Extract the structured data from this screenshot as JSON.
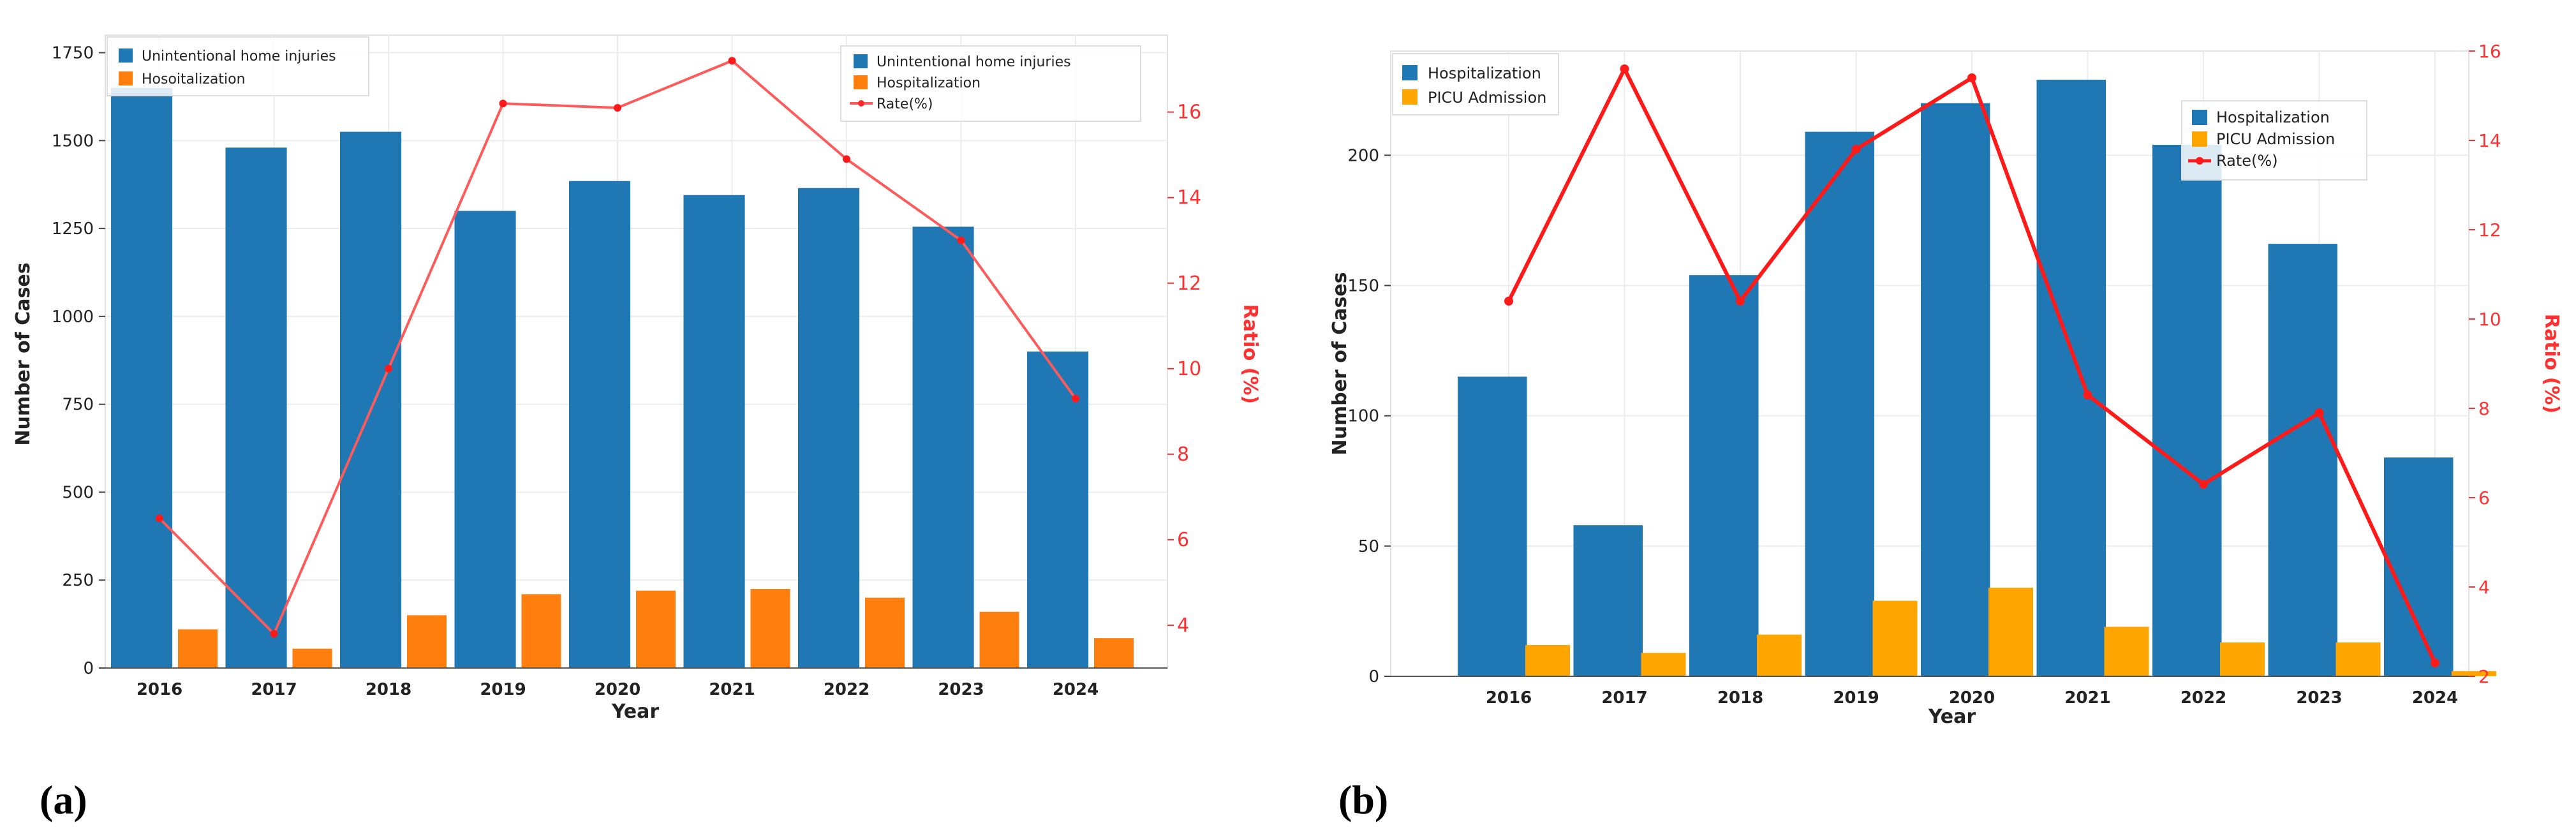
{
  "colors": {
    "blue": "#1f77b4",
    "orange": "#ff7f0e",
    "gold": "#ffa500",
    "rate_a": "#ff5a5a",
    "rate_b": "#ff1a1a",
    "axis_right": "#ff3030"
  },
  "panels": [
    {
      "label": "(a)",
      "xlabel": "Year",
      "ylabel": "Number of Cases",
      "y2label": "Ratio (%)",
      "legend_inner": [
        "Unintentional home injuries",
        "Hosoitalization"
      ],
      "legend_outer": [
        "Unintentional home injuries",
        "Hospitalization",
        "Rate(%)"
      ]
    },
    {
      "label": "(b)",
      "xlabel": "Year",
      "ylabel": "Number of Cases",
      "y2label": "Ratio (%)",
      "legend_inner": [
        "Hospitalization",
        "PICU Admission"
      ],
      "legend_outer": [
        "Hospitalization",
        "PICU Admission",
        "Rate(%)"
      ]
    }
  ],
  "chart_data": [
    {
      "type": "bar",
      "categories": [
        "2016",
        "2017",
        "2018",
        "2019",
        "2020",
        "2021",
        "2022",
        "2023",
        "2024"
      ],
      "series": [
        {
          "name": "Unintentional home injuries",
          "values": [
            1650,
            1480,
            1525,
            1300,
            1385,
            1345,
            1365,
            1255,
            900
          ]
        },
        {
          "name": "Hospitalization",
          "values": [
            110,
            55,
            150,
            210,
            220,
            225,
            200,
            160,
            85
          ]
        }
      ],
      "line_series": {
        "name": "Rate(%)",
        "axis": "right",
        "values": [
          6.5,
          3.8,
          10.0,
          16.2,
          16.1,
          17.2,
          14.9,
          13.0,
          9.3
        ]
      },
      "title": "",
      "xlabel": "Year",
      "ylabel": "Number of Cases",
      "y2label": "Ratio (%)",
      "ylim": [
        0,
        1800
      ],
      "y2lim": [
        3.0,
        17.8
      ],
      "yticks": [
        0,
        250,
        500,
        750,
        1000,
        1250,
        1500,
        1750
      ],
      "y2ticks": [
        4,
        6,
        8,
        10,
        12,
        14,
        16
      ],
      "grid": true
    },
    {
      "type": "bar",
      "categories": [
        "2016",
        "2017",
        "2018",
        "2019",
        "2020",
        "2021",
        "2022",
        "2023",
        "2024"
      ],
      "series": [
        {
          "name": "Hospitalization",
          "values": [
            115,
            58,
            154,
            209,
            220,
            229,
            204,
            166,
            84
          ]
        },
        {
          "name": "PICU Admission",
          "values": [
            12,
            9,
            16,
            29,
            34,
            19,
            13,
            13,
            2
          ]
        }
      ],
      "line_series": {
        "name": "Rate(%)",
        "axis": "right",
        "values": [
          10.4,
          15.6,
          10.4,
          13.8,
          15.4,
          8.3,
          6.3,
          7.9,
          2.3
        ]
      },
      "title": "",
      "xlabel": "Year",
      "ylabel": "Number of Cases",
      "y2label": "Ratio (%)",
      "ylim": [
        0,
        240
      ],
      "y2lim": [
        2.0,
        16.0
      ],
      "yticks": [
        0,
        50,
        100,
        150,
        200
      ],
      "y2ticks": [
        2,
        4,
        6,
        8,
        10,
        12,
        14,
        16
      ],
      "grid": true
    }
  ]
}
